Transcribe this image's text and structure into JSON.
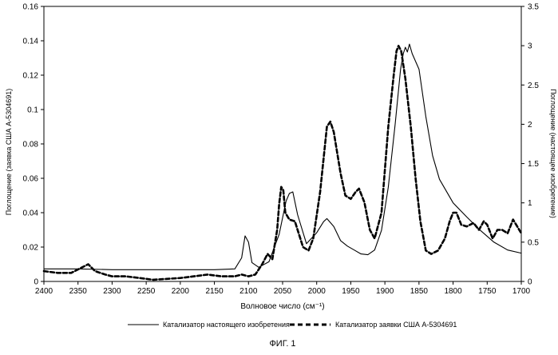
{
  "chart_data": {
    "type": "line",
    "xlabel": "Волновое число (см⁻¹)",
    "ylabel_left": "Поглощение (заявка США А-5304691)",
    "ylabel_right": "Поглощение (настоящее изобретение)",
    "caption": "ФИГ. 1",
    "x_ticks": [
      "2400",
      "2350",
      "2300",
      "2250",
      "2200",
      "2150",
      "2100",
      "2050",
      "2000",
      "1950",
      "1900",
      "1850",
      "1800",
      "1750",
      "1700"
    ],
    "y_left_ticks": [
      "0",
      "0.02",
      "0.04",
      "0.06",
      "0.08",
      "0.1",
      "0.12",
      "0.14",
      "0.16"
    ],
    "y_right_ticks": [
      "0",
      "0.5",
      "1",
      "1.5",
      "2",
      "2.5",
      "3",
      "3.5"
    ],
    "xlim": [
      2400,
      1700
    ],
    "ylim_left": [
      0,
      0.16
    ],
    "ylim_right": [
      0,
      3.5
    ],
    "x_reversed": true,
    "grid": false,
    "legend_position": "bottom",
    "series": [
      {
        "name": "Катализатор настоящего изобретения",
        "axis": "right",
        "style": "solid",
        "points": [
          [
            2400,
            0.16
          ],
          [
            2350,
            0.16
          ],
          [
            2300,
            0.15
          ],
          [
            2250,
            0.15
          ],
          [
            2200,
            0.15
          ],
          [
            2150,
            0.15
          ],
          [
            2120,
            0.16
          ],
          [
            2110,
            0.3
          ],
          [
            2105,
            0.58
          ],
          [
            2100,
            0.5
          ],
          [
            2095,
            0.24
          ],
          [
            2085,
            0.18
          ],
          [
            2070,
            0.25
          ],
          [
            2055,
            0.6
          ],
          [
            2045,
            1.02
          ],
          [
            2040,
            1.12
          ],
          [
            2035,
            1.14
          ],
          [
            2028,
            0.85
          ],
          [
            2015,
            0.48
          ],
          [
            2000,
            0.62
          ],
          [
            1990,
            0.76
          ],
          [
            1985,
            0.8
          ],
          [
            1975,
            0.7
          ],
          [
            1965,
            0.52
          ],
          [
            1955,
            0.45
          ],
          [
            1945,
            0.4
          ],
          [
            1935,
            0.35
          ],
          [
            1925,
            0.34
          ],
          [
            1915,
            0.4
          ],
          [
            1905,
            0.65
          ],
          [
            1895,
            1.2
          ],
          [
            1885,
            2.0
          ],
          [
            1877,
            2.7
          ],
          [
            1873,
            2.9
          ],
          [
            1870,
            2.98
          ],
          [
            1867,
            2.92
          ],
          [
            1864,
            3.02
          ],
          [
            1860,
            2.9
          ],
          [
            1850,
            2.7
          ],
          [
            1840,
            2.1
          ],
          [
            1830,
            1.6
          ],
          [
            1820,
            1.3
          ],
          [
            1800,
            1.0
          ],
          [
            1780,
            0.82
          ],
          [
            1760,
            0.65
          ],
          [
            1740,
            0.5
          ],
          [
            1720,
            0.4
          ],
          [
            1700,
            0.36
          ]
        ]
      },
      {
        "name": "Катализатор заявки США А-5304691",
        "axis": "left",
        "style": "dashed",
        "points": [
          [
            2400,
            0.006
          ],
          [
            2380,
            0.005
          ],
          [
            2360,
            0.005
          ],
          [
            2345,
            0.008
          ],
          [
            2335,
            0.01
          ],
          [
            2325,
            0.006
          ],
          [
            2310,
            0.004
          ],
          [
            2300,
            0.003
          ],
          [
            2280,
            0.003
          ],
          [
            2260,
            0.002
          ],
          [
            2240,
            0.001
          ],
          [
            2220,
            0.0015
          ],
          [
            2200,
            0.002
          ],
          [
            2180,
            0.003
          ],
          [
            2160,
            0.004
          ],
          [
            2140,
            0.003
          ],
          [
            2120,
            0.003
          ],
          [
            2110,
            0.004
          ],
          [
            2100,
            0.003
          ],
          [
            2090,
            0.004
          ],
          [
            2080,
            0.01
          ],
          [
            2072,
            0.016
          ],
          [
            2065,
            0.013
          ],
          [
            2058,
            0.03
          ],
          [
            2055,
            0.045
          ],
          [
            2052,
            0.055
          ],
          [
            2049,
            0.053
          ],
          [
            2046,
            0.04
          ],
          [
            2040,
            0.036
          ],
          [
            2032,
            0.035
          ],
          [
            2020,
            0.02
          ],
          [
            2012,
            0.018
          ],
          [
            2005,
            0.025
          ],
          [
            1995,
            0.052
          ],
          [
            1985,
            0.09
          ],
          [
            1980,
            0.093
          ],
          [
            1975,
            0.087
          ],
          [
            1965,
            0.063
          ],
          [
            1958,
            0.05
          ],
          [
            1950,
            0.048
          ],
          [
            1943,
            0.052
          ],
          [
            1938,
            0.054
          ],
          [
            1930,
            0.046
          ],
          [
            1922,
            0.03
          ],
          [
            1915,
            0.025
          ],
          [
            1905,
            0.04
          ],
          [
            1895,
            0.09
          ],
          [
            1887,
            0.12
          ],
          [
            1883,
            0.134
          ],
          [
            1880,
            0.137
          ],
          [
            1876,
            0.134
          ],
          [
            1870,
            0.118
          ],
          [
            1862,
            0.09
          ],
          [
            1855,
            0.06
          ],
          [
            1848,
            0.035
          ],
          [
            1840,
            0.018
          ],
          [
            1832,
            0.016
          ],
          [
            1822,
            0.018
          ],
          [
            1812,
            0.025
          ],
          [
            1805,
            0.035
          ],
          [
            1800,
            0.04
          ],
          [
            1795,
            0.04
          ],
          [
            1788,
            0.033
          ],
          [
            1780,
            0.032
          ],
          [
            1770,
            0.034
          ],
          [
            1762,
            0.03
          ],
          [
            1755,
            0.035
          ],
          [
            1750,
            0.033
          ],
          [
            1742,
            0.025
          ],
          [
            1735,
            0.03
          ],
          [
            1728,
            0.03
          ],
          [
            1720,
            0.028
          ],
          [
            1712,
            0.036
          ],
          [
            1706,
            0.032
          ],
          [
            1700,
            0.028
          ]
        ]
      }
    ]
  }
}
